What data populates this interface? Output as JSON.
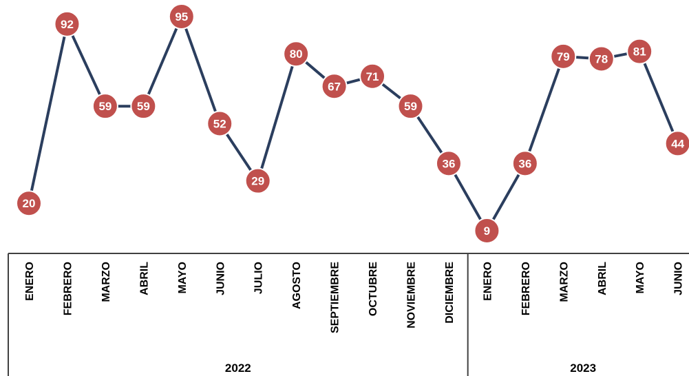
{
  "chart_data": {
    "type": "line",
    "categories": [
      "ENERO",
      "FEBRERO",
      "MARZO",
      "ABRIL",
      "MAYO",
      "JUNIO",
      "JULIO",
      "AGOSTO",
      "SEPTIEMBRE",
      "OCTUBRE",
      "NOVIEMBRE",
      "DICIEMBRE",
      "ENERO",
      "FEBRERO",
      "MARZO",
      "ABRIL",
      "MAYO",
      "JUNIO"
    ],
    "groups": [
      {
        "label": "2022",
        "count": 12
      },
      {
        "label": "2023",
        "count": 6
      }
    ],
    "series": [
      {
        "values": [
          20,
          92,
          59,
          59,
          95,
          52,
          29,
          80,
          67,
          71,
          59,
          36,
          9,
          36,
          79,
          78,
          81,
          44
        ]
      }
    ],
    "title": "",
    "xlabel": "",
    "ylabel": "",
    "ylim": [
      9,
      95
    ],
    "grid": false,
    "legend": "none",
    "colors": {
      "line": "#2B3E5E",
      "marker": "#C0504D",
      "marker_stroke": "#ffffff",
      "label": "#ffffff",
      "axis": "#404040"
    }
  }
}
